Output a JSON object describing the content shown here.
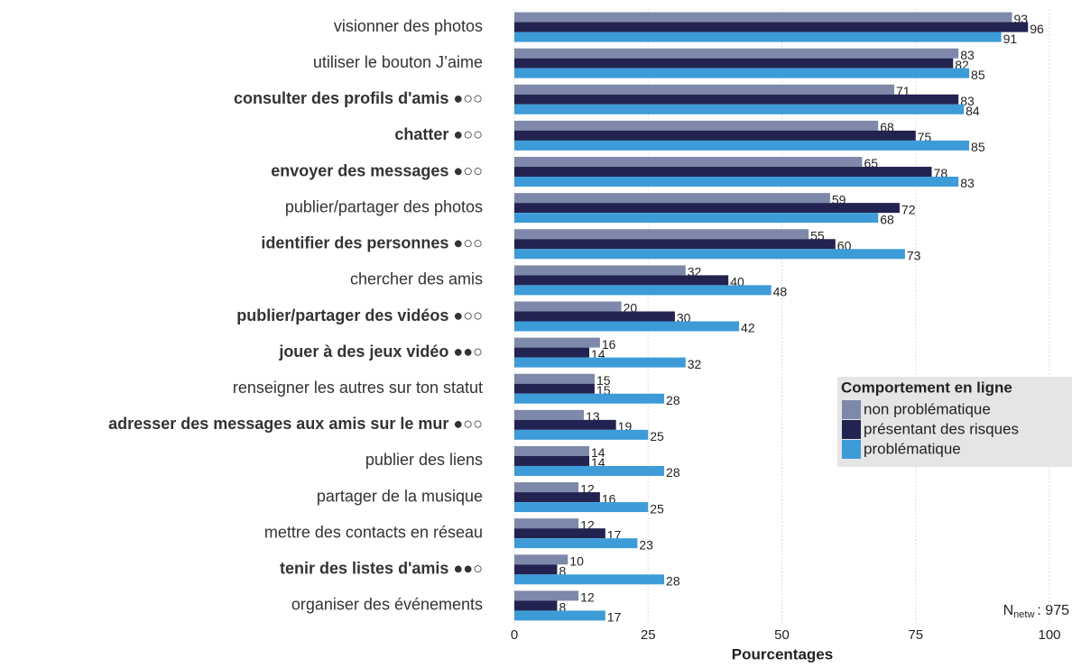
{
  "chart_data": {
    "type": "barh",
    "categories": [
      "visionner des photos",
      "utiliser le bouton J’aime",
      "consulter des profils d'amis ●○○",
      "chatter ●○○",
      "envoyer des messages ●○○",
      "publier/partager des photos",
      "identifier des personnes ●○○",
      "chercher des amis",
      "publier/partager des vidéos ●○○",
      "jouer à des jeux vidéo ●●○",
      "renseigner les autres sur ton statut",
      "adresser des messages aux amis sur le mur ●○○",
      "publier des liens",
      "partager de la musique",
      "mettre des contacts en réseau",
      "tenir des listes d'amis ●●○",
      "organiser des événements"
    ],
    "bold_categories": [
      false,
      false,
      true,
      true,
      true,
      false,
      true,
      false,
      true,
      true,
      false,
      true,
      false,
      false,
      false,
      true,
      false
    ],
    "series": [
      {
        "name": "non problématique",
        "color": "#7e88aa",
        "values": [
          93,
          83,
          71,
          68,
          65,
          59,
          55,
          32,
          20,
          16,
          15,
          13,
          14,
          12,
          12,
          10,
          12
        ]
      },
      {
        "name": "présentant des risques",
        "color": "#222350",
        "values": [
          96,
          82,
          83,
          75,
          78,
          72,
          60,
          40,
          30,
          14,
          15,
          19,
          14,
          16,
          17,
          8,
          8
        ]
      },
      {
        "name": "problématique",
        "color": "#3d9bd8",
        "values": [
          91,
          85,
          84,
          85,
          83,
          68,
          73,
          48,
          42,
          32,
          28,
          25,
          28,
          25,
          23,
          28,
          17
        ]
      }
    ],
    "xlabel": "Pourcentages",
    "legend_title": "Comportement en ligne",
    "annotation": {
      "main": "N",
      "sub": "netw",
      "text": ": 975"
    },
    "xlim": [
      -1,
      104
    ],
    "xticks": [
      0,
      25,
      50,
      75,
      100
    ],
    "grid": true
  }
}
